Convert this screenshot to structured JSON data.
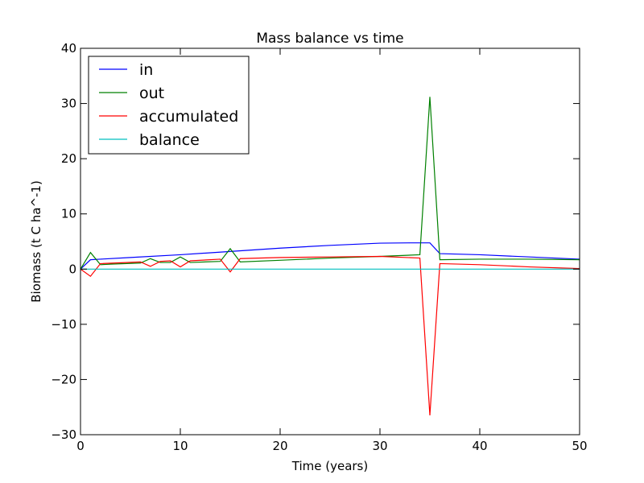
{
  "chart_data": {
    "type": "line",
    "title": "Mass balance vs time",
    "xlabel": "Time (years)",
    "ylabel": "Biomass (t C ha^-1)",
    "xlim": [
      0,
      50
    ],
    "ylim": [
      -30,
      40
    ],
    "x_ticks": [
      0,
      10,
      20,
      30,
      40,
      50
    ],
    "y_ticks": [
      -30,
      -20,
      -10,
      0,
      10,
      20,
      30,
      40
    ],
    "x_tick_labels": [
      "0",
      "10",
      "20",
      "30",
      "40",
      "50"
    ],
    "y_tick_labels": [
      "−30",
      "−20",
      "−10",
      "0",
      "10",
      "20",
      "30",
      "40"
    ],
    "grid": false,
    "legend_position": "top-left",
    "series": [
      {
        "name": "in",
        "color": "#0000ff",
        "x": [
          0,
          1,
          2,
          5,
          10,
          15,
          20,
          25,
          30,
          33,
          34,
          35,
          36,
          40,
          45,
          50
        ],
        "y": [
          0,
          1.7,
          1.8,
          2.1,
          2.6,
          3.2,
          3.8,
          4.3,
          4.7,
          4.75,
          4.75,
          4.75,
          2.8,
          2.6,
          2.2,
          1.8
        ]
      },
      {
        "name": "out",
        "color": "#008000",
        "x": [
          0,
          1,
          2,
          3,
          6,
          7,
          8,
          9,
          10,
          11,
          14,
          15,
          16,
          20,
          25,
          30,
          34,
          35,
          36,
          40,
          45,
          50
        ],
        "y": [
          0,
          3.0,
          0.8,
          0.9,
          1.1,
          1.9,
          1.2,
          1.2,
          2.2,
          1.2,
          1.4,
          3.7,
          1.3,
          1.6,
          2.0,
          2.3,
          2.6,
          31.2,
          1.7,
          1.8,
          1.8,
          1.7
        ]
      },
      {
        "name": "accumulated",
        "color": "#ff0000",
        "x": [
          0,
          1,
          2,
          6,
          7,
          8,
          9,
          10,
          11,
          14,
          15,
          16,
          20,
          25,
          30,
          34,
          35,
          36,
          40,
          45,
          50
        ],
        "y": [
          0,
          -1.3,
          1.0,
          1.3,
          0.5,
          1.4,
          1.5,
          0.4,
          1.5,
          1.8,
          -0.5,
          1.9,
          2.1,
          2.2,
          2.3,
          2.0,
          -26.5,
          1.0,
          0.8,
          0.4,
          0.1
        ]
      },
      {
        "name": "balance",
        "color": "#00bfbf",
        "x": [
          0,
          50
        ],
        "y": [
          0,
          0
        ]
      }
    ]
  }
}
